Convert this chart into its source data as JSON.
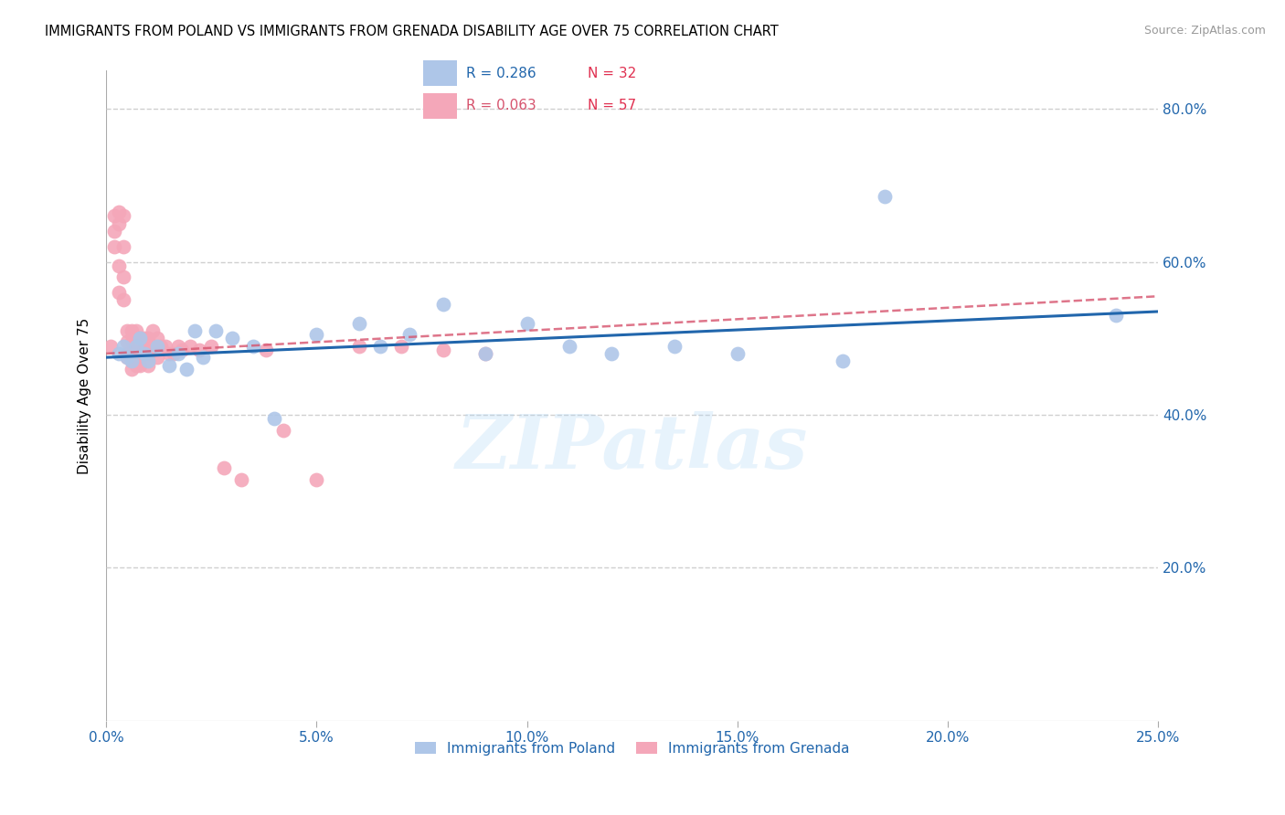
{
  "title": "IMMIGRANTS FROM POLAND VS IMMIGRANTS FROM GRENADA DISABILITY AGE OVER 75 CORRELATION CHART",
  "source": "Source: ZipAtlas.com",
  "ylabel": "Disability Age Over 75",
  "xlim": [
    0.0,
    0.25
  ],
  "ylim": [
    0.0,
    0.85
  ],
  "xtick_values": [
    0.0,
    0.05,
    0.1,
    0.15,
    0.2,
    0.25
  ],
  "xtick_labels": [
    "0.0%",
    "5.0%",
    "10.0%",
    "15.0%",
    "20.0%",
    "25.0%"
  ],
  "ytick_values": [
    0.2,
    0.4,
    0.6,
    0.8
  ],
  "ytick_labels": [
    "20.0%",
    "40.0%",
    "60.0%",
    "80.0%"
  ],
  "poland_color": "#aec6e8",
  "grenada_color": "#f4a7b9",
  "poland_line_color": "#2166ac",
  "grenada_line_color": "#d6536d",
  "legend_poland_R": "0.286",
  "legend_poland_N": "32",
  "legend_grenada_R": "0.063",
  "legend_grenada_N": "57",
  "poland_x": [
    0.003,
    0.004,
    0.005,
    0.006,
    0.007,
    0.008,
    0.009,
    0.01,
    0.012,
    0.015,
    0.017,
    0.019,
    0.021,
    0.023,
    0.026,
    0.03,
    0.035,
    0.04,
    0.05,
    0.06,
    0.065,
    0.072,
    0.08,
    0.09,
    0.1,
    0.11,
    0.12,
    0.135,
    0.15,
    0.175,
    0.185,
    0.24
  ],
  "poland_y": [
    0.48,
    0.49,
    0.475,
    0.47,
    0.49,
    0.5,
    0.48,
    0.47,
    0.49,
    0.465,
    0.48,
    0.46,
    0.51,
    0.475,
    0.51,
    0.5,
    0.49,
    0.395,
    0.505,
    0.52,
    0.49,
    0.505,
    0.545,
    0.48,
    0.52,
    0.49,
    0.48,
    0.49,
    0.48,
    0.47,
    0.685,
    0.53
  ],
  "grenada_x": [
    0.001,
    0.002,
    0.002,
    0.002,
    0.003,
    0.003,
    0.003,
    0.003,
    0.004,
    0.004,
    0.004,
    0.004,
    0.005,
    0.005,
    0.005,
    0.005,
    0.006,
    0.006,
    0.006,
    0.006,
    0.006,
    0.007,
    0.007,
    0.007,
    0.007,
    0.008,
    0.008,
    0.008,
    0.008,
    0.009,
    0.009,
    0.01,
    0.01,
    0.01,
    0.01,
    0.011,
    0.011,
    0.012,
    0.012,
    0.013,
    0.014,
    0.015,
    0.016,
    0.017,
    0.018,
    0.02,
    0.022,
    0.025,
    0.028,
    0.032,
    0.038,
    0.042,
    0.05,
    0.06,
    0.07,
    0.08,
    0.09
  ],
  "grenada_y": [
    0.49,
    0.66,
    0.64,
    0.62,
    0.665,
    0.65,
    0.595,
    0.56,
    0.66,
    0.62,
    0.58,
    0.55,
    0.51,
    0.495,
    0.48,
    0.475,
    0.51,
    0.495,
    0.48,
    0.47,
    0.46,
    0.51,
    0.495,
    0.48,
    0.465,
    0.5,
    0.49,
    0.48,
    0.465,
    0.5,
    0.48,
    0.5,
    0.49,
    0.48,
    0.465,
    0.51,
    0.49,
    0.5,
    0.475,
    0.49,
    0.49,
    0.48,
    0.48,
    0.49,
    0.485,
    0.49,
    0.485,
    0.49,
    0.33,
    0.315,
    0.485,
    0.38,
    0.315,
    0.49,
    0.49,
    0.485,
    0.48
  ],
  "watermark": "ZIPatlas",
  "background_color": "#ffffff",
  "grid_color": "#d0d0d0"
}
